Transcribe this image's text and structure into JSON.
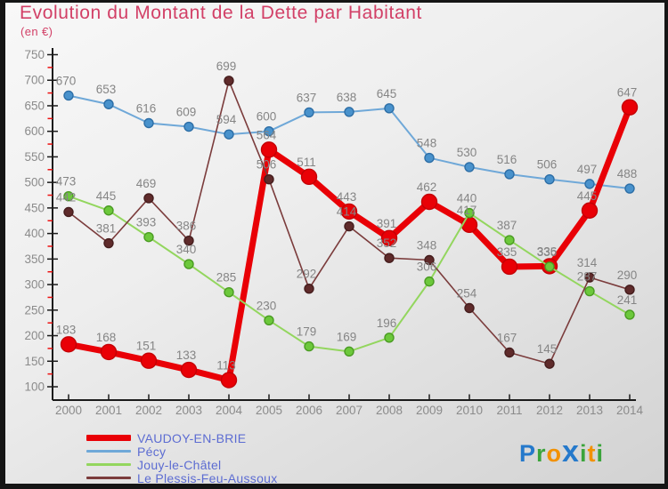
{
  "header": {
    "title": "Evolution du Montant de la Dette par Habitant",
    "subtitle": "(en €)",
    "title_color": "#d24067"
  },
  "axis": {
    "axis_color": "#1b1b1b",
    "tick_label_color": "#8b8b8b",
    "minor_tick_color": "#ee1111",
    "data_label_color": "#858585"
  },
  "legend": {
    "text_color": "#5c6cd2",
    "position": "bottom-left"
  },
  "chart_data": {
    "type": "line",
    "title": "Evolution du Montant de la Dette par Habitant",
    "subtitle": "(en €)",
    "x": [
      "2000",
      "2001",
      "2002",
      "2003",
      "2004",
      "2005",
      "2006",
      "2007",
      "2008",
      "2009",
      "2010",
      "2011",
      "2012",
      "2013",
      "2014"
    ],
    "ylim": [
      100,
      750
    ],
    "ytick_step": 50,
    "yminor_step": 25,
    "grid": false,
    "legend_position": "bottom-left",
    "draw_order": [
      1,
      0,
      2,
      3
    ],
    "series": [
      {
        "name": "VAUDOY-EN-BRIE",
        "color": "#e90006",
        "marker_fill": "#e90006",
        "marker_stroke": "#c40005",
        "line_width": 7,
        "marker_radius": 8.5,
        "values": [
          183,
          168,
          151,
          133,
          113,
          564,
          511,
          443,
          391,
          462,
          417,
          335,
          336,
          445,
          647
        ]
      },
      {
        "name": "Pécy",
        "color": "#6fa8d8",
        "marker_fill": "#4992cc",
        "marker_stroke": "#2d6ea6",
        "line_width": 2,
        "marker_radius": 5,
        "values": [
          670,
          653,
          616,
          609,
          594,
          600,
          637,
          638,
          645,
          548,
          530,
          516,
          506,
          497,
          488
        ]
      },
      {
        "name": "Jouy-le-Châtel",
        "color": "#93d65e",
        "marker_fill": "#6cc83b",
        "marker_stroke": "#4a9b22",
        "line_width": 2,
        "marker_radius": 5,
        "values": [
          473,
          445,
          393,
          340,
          285,
          230,
          179,
          169,
          196,
          306,
          440,
          387,
          335,
          287,
          241
        ]
      },
      {
        "name": "Le Plessis-Feu-Aussoux",
        "color": "#7b3c3c",
        "marker_fill": "#5f2b2b",
        "marker_stroke": "#451d1d",
        "line_width": 1.6,
        "marker_radius": 5,
        "values": [
          442,
          381,
          469,
          386,
          699,
          506,
          292,
          414,
          352,
          348,
          254,
          167,
          145,
          314,
          290
        ]
      }
    ]
  },
  "logo": {
    "letters": [
      {
        "ch": "P",
        "color": "#2579cb",
        "big": false
      },
      {
        "ch": "r",
        "color": "#3ba43b",
        "big": false
      },
      {
        "ch": "o",
        "color": "#f29100",
        "big": false
      },
      {
        "ch": "x",
        "color": "#2579cb",
        "big": true
      },
      {
        "ch": "i",
        "color": "#3ba43b",
        "big": false
      },
      {
        "ch": "t",
        "color": "#f29100",
        "big": false
      },
      {
        "ch": "i",
        "color": "#3ba43b",
        "big": false
      }
    ]
  }
}
